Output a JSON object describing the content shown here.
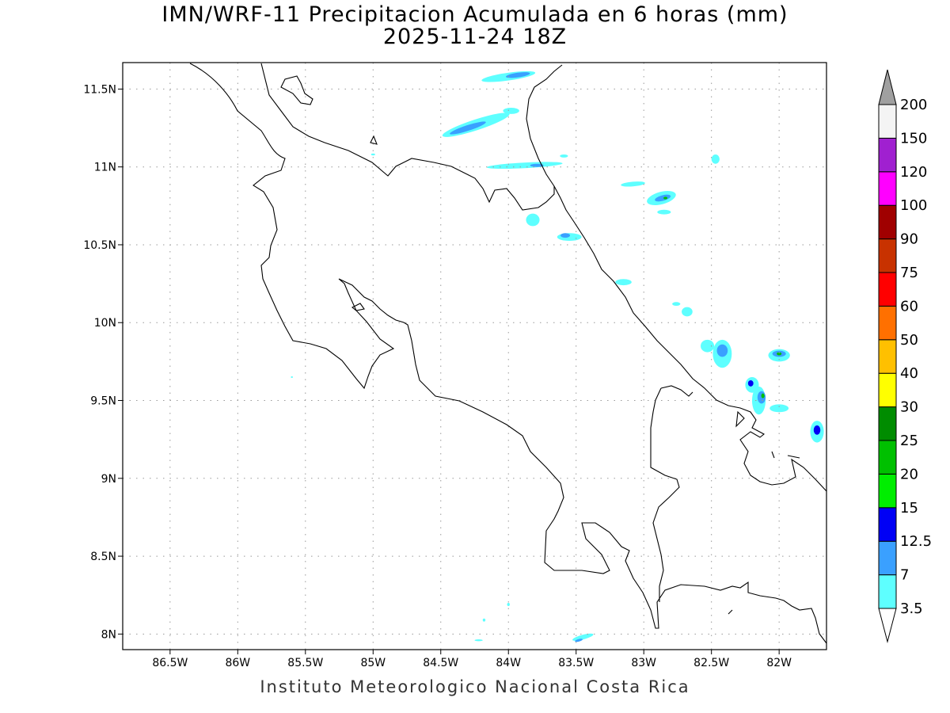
{
  "title": {
    "line1": "IMN/WRF-11 Precipitacion Acumulada en 6 horas (mm)",
    "line2": "2025-11-24 18Z"
  },
  "footer": "Instituto Meteorologico Nacional Costa Rica",
  "map": {
    "lon_range": [
      -86.85,
      -81.65
    ],
    "lat_range": [
      7.9,
      11.67
    ],
    "lat_ticks": [
      {
        "value": 11.5,
        "label": "11.5N"
      },
      {
        "value": 11.0,
        "label": "11N"
      },
      {
        "value": 10.5,
        "label": "10.5N"
      },
      {
        "value": 10.0,
        "label": "10N"
      },
      {
        "value": 9.5,
        "label": "9.5N"
      },
      {
        "value": 9.0,
        "label": "9N"
      },
      {
        "value": 8.5,
        "label": "8.5N"
      },
      {
        "value": 8.0,
        "label": "8N"
      }
    ],
    "lon_ticks": [
      {
        "value": -86.5,
        "label": "86.5W"
      },
      {
        "value": -86.0,
        "label": "86W"
      },
      {
        "value": -85.5,
        "label": "85.5W"
      },
      {
        "value": -85.0,
        "label": "85W"
      },
      {
        "value": -84.5,
        "label": "84.5W"
      },
      {
        "value": -84.0,
        "label": "84W"
      },
      {
        "value": -83.5,
        "label": "83.5W"
      },
      {
        "value": -83.0,
        "label": "83W"
      },
      {
        "value": -82.5,
        "label": "82.5W"
      },
      {
        "value": -82.0,
        "label": "82W"
      }
    ],
    "grid": "dotted",
    "precip_cells": [
      {
        "lon": -84.0,
        "lat": 11.58,
        "rlon": 0.2,
        "rlat": 0.025,
        "rot": -8,
        "level": 1
      },
      {
        "lon": -83.93,
        "lat": 11.59,
        "rlon": 0.09,
        "rlat": 0.015,
        "rot": -8,
        "level": 2
      },
      {
        "lon": -84.24,
        "lat": 11.27,
        "rlon": 0.26,
        "rlat": 0.035,
        "rot": -18,
        "level": 1
      },
      {
        "lon": -84.3,
        "lat": 11.25,
        "rlon": 0.14,
        "rlat": 0.018,
        "rot": -18,
        "level": 2
      },
      {
        "lon": -83.98,
        "lat": 11.36,
        "rlon": 0.06,
        "rlat": 0.02,
        "rot": 0,
        "level": 1
      },
      {
        "lon": -83.88,
        "lat": 11.01,
        "rlon": 0.28,
        "rlat": 0.018,
        "rot": -3,
        "level": 1
      },
      {
        "lon": -83.79,
        "lat": 11.01,
        "rlon": 0.05,
        "rlat": 0.01,
        "rot": 0,
        "level": 2
      },
      {
        "lon": -83.59,
        "lat": 11.07,
        "rlon": 0.03,
        "rlat": 0.01,
        "rot": 0,
        "level": 1
      },
      {
        "lon": -83.08,
        "lat": 10.89,
        "rlon": 0.09,
        "rlat": 0.015,
        "rot": -5,
        "level": 1
      },
      {
        "lon": -82.87,
        "lat": 10.8,
        "rlon": 0.11,
        "rlat": 0.04,
        "rot": -15,
        "level": 1
      },
      {
        "lon": -82.86,
        "lat": 10.8,
        "rlon": 0.06,
        "rlat": 0.018,
        "rot": -15,
        "level": 2
      },
      {
        "lon": -82.84,
        "lat": 10.8,
        "rlon": 0.015,
        "rlat": 0.008,
        "rot": 0,
        "level": 5
      },
      {
        "lon": -82.85,
        "lat": 10.71,
        "rlon": 0.05,
        "rlat": 0.015,
        "rot": 0,
        "level": 1
      },
      {
        "lon": -83.82,
        "lat": 10.66,
        "rlon": 0.05,
        "rlat": 0.04,
        "rot": 0,
        "level": 1
      },
      {
        "lon": -83.55,
        "lat": 10.55,
        "rlon": 0.09,
        "rlat": 0.025,
        "rot": 0,
        "level": 1
      },
      {
        "lon": -83.58,
        "lat": 10.56,
        "rlon": 0.035,
        "rlat": 0.015,
        "rot": 0,
        "level": 2
      },
      {
        "lon": -83.15,
        "lat": 10.26,
        "rlon": 0.06,
        "rlat": 0.02,
        "rot": 0,
        "level": 1
      },
      {
        "lon": -82.76,
        "lat": 10.12,
        "rlon": 0.03,
        "rlat": 0.012,
        "rot": 0,
        "level": 1
      },
      {
        "lon": -82.68,
        "lat": 10.07,
        "rlon": 0.04,
        "rlat": 0.03,
        "rot": 0,
        "level": 1
      },
      {
        "lon": -82.47,
        "lat": 11.05,
        "rlon": 0.03,
        "rlat": 0.03,
        "rot": 0,
        "level": 1
      },
      {
        "lon": -82.53,
        "lat": 9.85,
        "rlon": 0.05,
        "rlat": 0.04,
        "rot": 0,
        "level": 1
      },
      {
        "lon": -82.42,
        "lat": 9.8,
        "rlon": 0.07,
        "rlat": 0.09,
        "rot": 0,
        "level": 1
      },
      {
        "lon": -82.42,
        "lat": 9.82,
        "rlon": 0.04,
        "rlat": 0.04,
        "rot": 0,
        "level": 2
      },
      {
        "lon": -82.0,
        "lat": 9.79,
        "rlon": 0.08,
        "rlat": 0.04,
        "rot": 0,
        "level": 1
      },
      {
        "lon": -82.0,
        "lat": 9.8,
        "rlon": 0.05,
        "rlat": 0.02,
        "rot": 0,
        "level": 2
      },
      {
        "lon": -82.0,
        "lat": 9.8,
        "rlon": 0.018,
        "rlat": 0.01,
        "rot": 0,
        "level": 5
      },
      {
        "lon": -82.2,
        "lat": 9.6,
        "rlon": 0.05,
        "rlat": 0.05,
        "rot": 0,
        "level": 1
      },
      {
        "lon": -82.21,
        "lat": 9.61,
        "rlon": 0.02,
        "rlat": 0.02,
        "rot": 0,
        "level": 3
      },
      {
        "lon": -82.15,
        "lat": 9.5,
        "rlon": 0.05,
        "rlat": 0.09,
        "rot": 0,
        "level": 1
      },
      {
        "lon": -82.13,
        "lat": 9.52,
        "rlon": 0.03,
        "rlat": 0.04,
        "rot": 0,
        "level": 2
      },
      {
        "lon": -82.12,
        "lat": 9.53,
        "rlon": 0.012,
        "rlat": 0.015,
        "rot": 0,
        "level": 5
      },
      {
        "lon": -82.0,
        "lat": 9.45,
        "rlon": 0.07,
        "rlat": 0.025,
        "rot": 0,
        "level": 1
      },
      {
        "lon": -81.72,
        "lat": 9.3,
        "rlon": 0.05,
        "rlat": 0.07,
        "rot": 0,
        "level": 1
      },
      {
        "lon": -81.72,
        "lat": 9.31,
        "rlon": 0.025,
        "rlat": 0.03,
        "rot": 0,
        "level": 3
      },
      {
        "lon": -83.45,
        "lat": 7.98,
        "rlon": 0.08,
        "rlat": 0.015,
        "rot": -15,
        "level": 1
      },
      {
        "lon": -83.48,
        "lat": 7.96,
        "rlon": 0.03,
        "rlat": 0.008,
        "rot": -15,
        "level": 2
      },
      {
        "lon": -84.22,
        "lat": 7.96,
        "rlon": 0.03,
        "rlat": 0.006,
        "rot": 0,
        "level": 1
      },
      {
        "lon": -84.18,
        "lat": 8.09,
        "rlon": 0.01,
        "rlat": 0.01,
        "rot": 0,
        "level": 1
      },
      {
        "lon": -84.0,
        "lat": 8.19,
        "rlon": 0.01,
        "rlat": 0.01,
        "rot": 0,
        "level": 1
      },
      {
        "lon": -85.0,
        "lat": 11.08,
        "rlon": 0.015,
        "rlat": 0.006,
        "rot": 0,
        "level": 1
      },
      {
        "lon": -85.6,
        "lat": 9.65,
        "rlon": 0.008,
        "rlat": 0.005,
        "rot": 0,
        "level": 1
      }
    ]
  },
  "colorbar": {
    "levels": [
      "3.5",
      "7",
      "12.5",
      "15",
      "20",
      "25",
      "30",
      "40",
      "50",
      "60",
      "75",
      "90",
      "100",
      "120",
      "150",
      "200"
    ],
    "colors": [
      "#5effff",
      "#3aa0ff",
      "#0000f5",
      "#00ee00",
      "#00c000",
      "#008c00",
      "#ffff00",
      "#ffc000",
      "#ff7000",
      "#ff0000",
      "#c83200",
      "#a00000",
      "#ff00ff",
      "#a020d0",
      "#f4f4f4"
    ],
    "over_color": "#a0a0a0",
    "under_color": "#ffffff"
  }
}
